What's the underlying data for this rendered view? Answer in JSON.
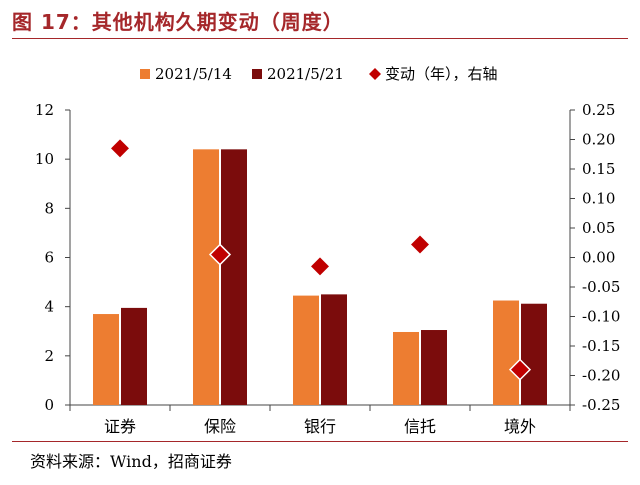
{
  "figure": {
    "title": "图 17：其他机构久期变动（周度）",
    "source": "资料来源：Wind，招商证券"
  },
  "colors": {
    "title": "#a5272a",
    "series1": "#ed7d31",
    "series2": "#7b0c0c",
    "marker": "#c00000",
    "axis": "#444444"
  },
  "chart_data": {
    "type": "bar",
    "categories": [
      "证券",
      "保险",
      "银行",
      "信托",
      "境外"
    ],
    "series": [
      {
        "name": "2021/5/14",
        "axis": "left",
        "values": [
          3.7,
          10.4,
          4.45,
          2.97,
          4.25
        ]
      },
      {
        "name": "2021/5/21",
        "axis": "left",
        "values": [
          3.95,
          10.4,
          4.5,
          3.05,
          4.12
        ]
      },
      {
        "name": "变动（年），右轴",
        "axis": "right",
        "type": "scatter",
        "marker": "diamond",
        "values": [
          0.185,
          0.005,
          -0.015,
          0.022,
          -0.19
        ]
      }
    ],
    "y_left": {
      "min": 0,
      "max": 12,
      "ticks": [
        "0",
        "2",
        "4",
        "6",
        "8",
        "10",
        "12"
      ]
    },
    "y_right": {
      "min": -0.25,
      "max": 0.25,
      "ticks": [
        "-0.25",
        "-0.20",
        "-0.15",
        "-0.10",
        "-0.05",
        "0.00",
        "0.05",
        "0.10",
        "0.15",
        "0.20",
        "0.25"
      ]
    },
    "legend_position": "top",
    "grid": false
  }
}
